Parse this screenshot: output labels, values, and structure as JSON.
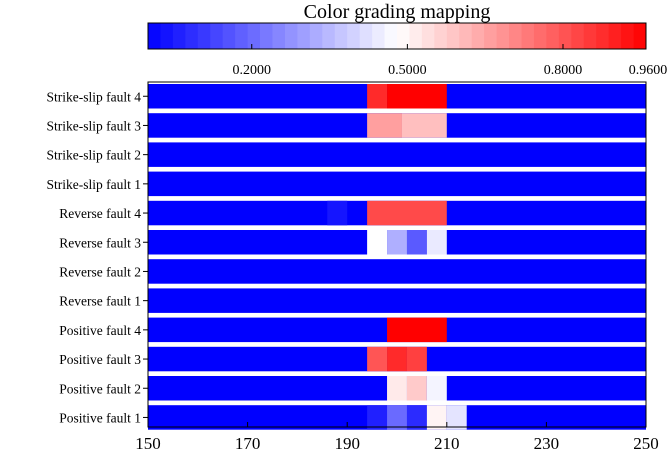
{
  "chart_data": {
    "type": "heatmap",
    "colorbar": {
      "title": "Color grading mapping",
      "min": 0,
      "max": 0.96,
      "ticks": [
        {
          "value": 0.2,
          "label": "0.2000"
        },
        {
          "value": 0.5,
          "label": "0.5000"
        },
        {
          "value": 0.8,
          "label": "0.8000"
        },
        {
          "value": 0.96,
          "label": "0.9600"
        }
      ],
      "steps": 40,
      "low_color": "#0000ff",
      "mid_color": "#ffffff",
      "high_color": "#ff0000"
    },
    "xlim": [
      150,
      250
    ],
    "x_ticks": [
      150,
      170,
      190,
      210,
      230,
      250
    ],
    "x_tick_labels": [
      "150",
      "170",
      "190",
      "210",
      "230",
      "250"
    ],
    "default_value": 0,
    "rows": [
      {
        "label": "Strike-slip fault 4",
        "cells": [
          [
            194,
            198,
            0.88
          ],
          [
            198,
            210,
            0.96
          ]
        ]
      },
      {
        "label": "Strike-slip fault 3",
        "cells": [
          [
            194,
            201,
            0.66
          ],
          [
            201,
            210,
            0.6
          ]
        ]
      },
      {
        "label": "Strike-slip fault 2",
        "cells": []
      },
      {
        "label": "Strike-slip fault 1",
        "cells": []
      },
      {
        "label": "Reverse fault 4",
        "cells": [
          [
            186,
            190,
            0.04
          ],
          [
            194,
            210,
            0.82
          ]
        ]
      },
      {
        "label": "Reverse fault 3",
        "cells": [
          [
            194,
            198,
            0.48
          ],
          [
            198,
            202,
            0.33
          ],
          [
            202,
            206,
            0.17
          ],
          [
            206,
            210,
            0.44
          ]
        ]
      },
      {
        "label": "Reverse fault 2",
        "cells": []
      },
      {
        "label": "Reverse fault 1",
        "cells": []
      },
      {
        "label": "Positive fault 4",
        "cells": [
          [
            198,
            210,
            0.96
          ]
        ]
      },
      {
        "label": "Positive fault 3",
        "cells": [
          [
            194,
            198,
            0.8
          ],
          [
            198,
            202,
            0.88
          ],
          [
            202,
            206,
            0.84
          ]
        ]
      },
      {
        "label": "Positive fault 2",
        "cells": [
          [
            198,
            202,
            0.52
          ],
          [
            202,
            206,
            0.58
          ],
          [
            206,
            210,
            0.46
          ]
        ]
      },
      {
        "label": "Positive fault 1",
        "cells": [
          [
            194,
            198,
            0.06
          ],
          [
            198,
            202,
            0.2
          ],
          [
            202,
            206,
            0.08
          ],
          [
            206,
            210,
            0.5
          ],
          [
            210,
            214,
            0.43
          ]
        ]
      }
    ]
  }
}
